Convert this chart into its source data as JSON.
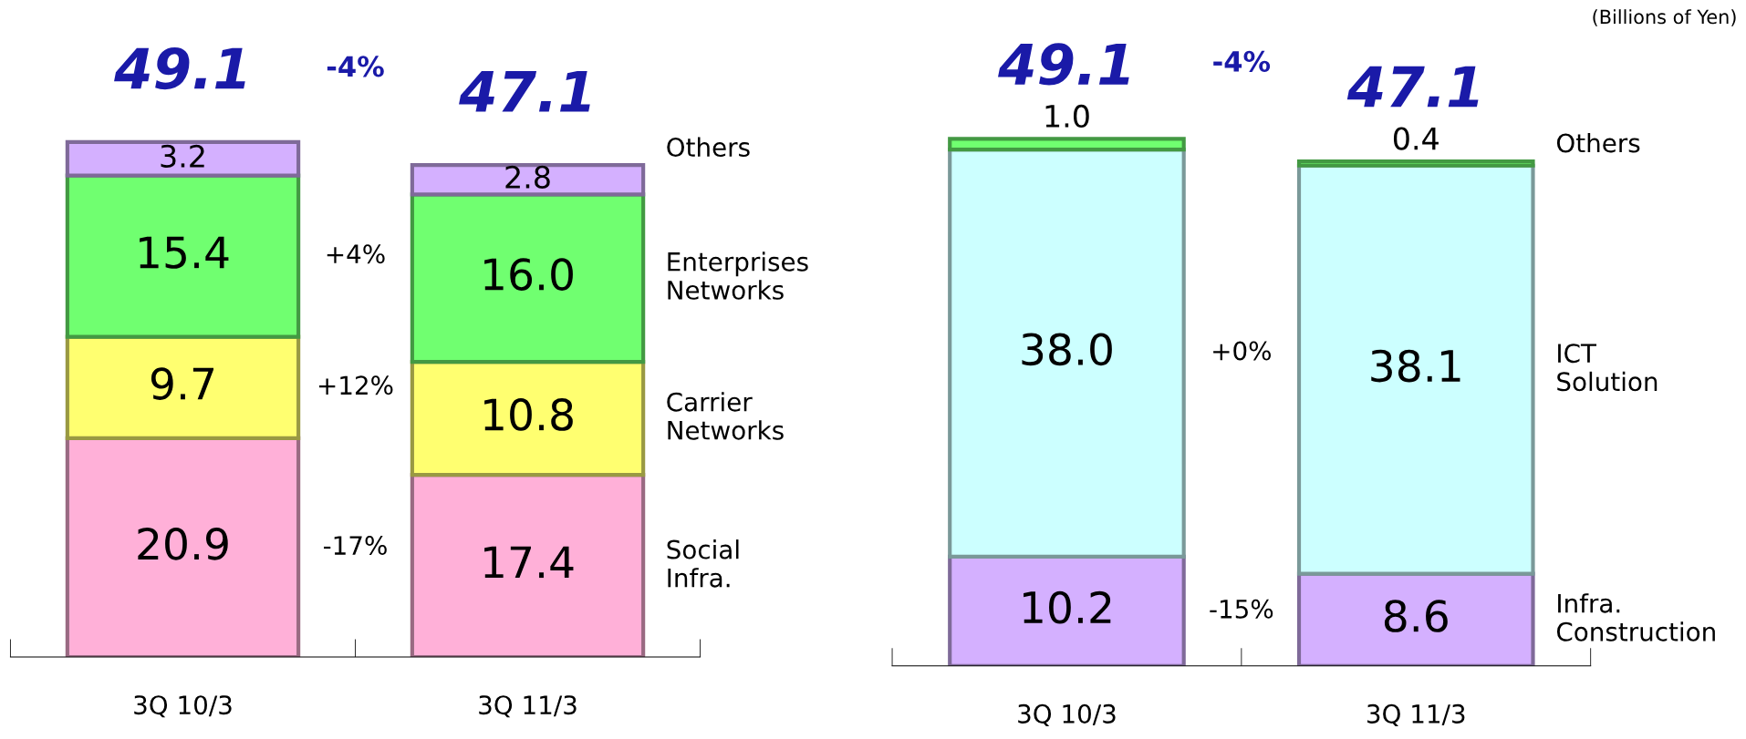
{
  "chart_data": [
    {
      "type": "bar",
      "stacked": true,
      "categories": [
        "3Q 10/3",
        "3Q 11/3"
      ],
      "legend": false,
      "totals": [
        "49.1",
        "47.1"
      ],
      "series": [
        {
          "name": "Social\nInfra.",
          "color": "#ffb0d8",
          "values": [
            20.9,
            17.4
          ],
          "value_labels": [
            "20.9",
            "17.4"
          ]
        },
        {
          "name": "Carrier\nNetworks",
          "color": "#ffff70",
          "values": [
            9.7,
            10.8
          ],
          "value_labels": [
            "9.7",
            "10.8"
          ]
        },
        {
          "name": "Enterprises\nNetworks",
          "color": "#70ff70",
          "values": [
            15.4,
            16.0
          ],
          "value_labels": [
            "15.4",
            "16.0"
          ]
        },
        {
          "name": "Others",
          "color": "#d4b0ff",
          "values": [
            3.2,
            2.8
          ],
          "value_labels": [
            "3.2",
            "2.8"
          ]
        }
      ],
      "annotations": [
        "-4%",
        "+4%",
        "+12%",
        "-17%"
      ]
    },
    {
      "type": "bar",
      "stacked": true,
      "categories": [
        "3Q 10/3",
        "3Q 11/3"
      ],
      "legend": false,
      "totals": [
        "49.1",
        "47.1"
      ],
      "subtitle": "(Billions of Yen)",
      "series": [
        {
          "name": "Infra.\nConstruction",
          "color": "#d4b0ff",
          "values": [
            10.2,
            8.6
          ],
          "value_labels": [
            "10.2",
            "8.6"
          ]
        },
        {
          "name": "ICT\nSolution",
          "color": "#ccffff",
          "values": [
            38.0,
            38.1
          ],
          "value_labels": [
            "38.0",
            "38.1"
          ]
        },
        {
          "name": "Others",
          "color": "#70ff70",
          "values": [
            1.0,
            0.4
          ],
          "value_labels": [
            "1.0",
            "0.4"
          ]
        }
      ],
      "annotations": [
        "-4%",
        "+0%",
        "-15%"
      ]
    }
  ]
}
